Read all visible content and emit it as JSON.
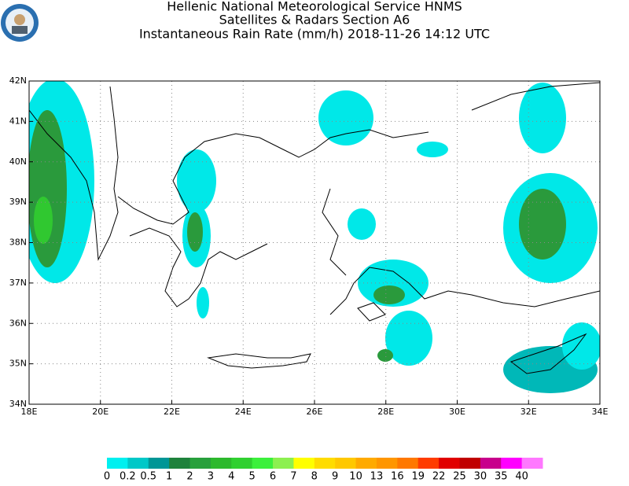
{
  "header": {
    "lines": [
      "Hellenic National Meteorological Service HNMS",
      "Satellites & Radars Section A6",
      "Instantaneous Rain Rate (mm/h) 2018-11-26 14:12 UTC"
    ]
  },
  "map": {
    "lat_labels": [
      "42N",
      "41N",
      "40N",
      "39N",
      "38N",
      "37N",
      "36N",
      "35N",
      "34N"
    ],
    "lon_labels": [
      "18E",
      "20E",
      "22E",
      "24E",
      "26E",
      "28E",
      "30E",
      "32E",
      "34E"
    ]
  },
  "colorbar": {
    "labels": [
      0,
      0.2,
      0.5,
      1,
      2,
      3,
      4,
      5,
      6,
      7,
      8,
      9,
      10,
      13,
      16,
      19,
      22,
      25,
      30,
      35,
      40
    ],
    "colors": [
      "#00f0f0",
      "#00c8c8",
      "#009696",
      "#1e823c",
      "#28a03c",
      "#2db92d",
      "#30d030",
      "#3cf03c",
      "#8cf050",
      "#ffff00",
      "#ffdc00",
      "#ffc800",
      "#ffaa00",
      "#ff9600",
      "#ff7800",
      "#ff3c00",
      "#e10000",
      "#c00000",
      "#c8008c",
      "#ff00ff",
      "#ff78ff"
    ]
  }
}
